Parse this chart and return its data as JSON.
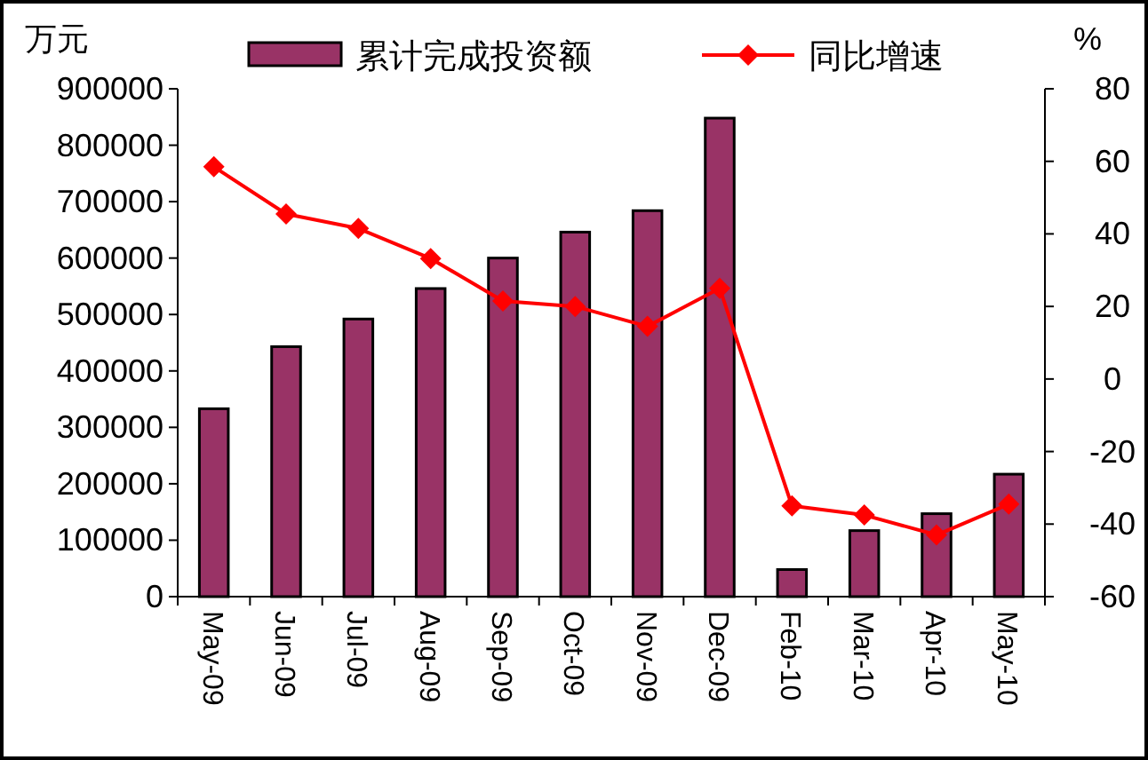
{
  "chart_data": {
    "type": "bar",
    "ylabel": "万元",
    "y2label": "%",
    "categories": [
      "May-09",
      "Jun-09",
      "Jul-09",
      "Aug-09",
      "Sep-09",
      "Oct-09",
      "Nov-09",
      "Dec-09",
      "Feb-10",
      "Mar-10",
      "Apr-10",
      "May-10"
    ],
    "series": [
      {
        "name": "累计完成投资额",
        "color": "#993366",
        "values": [
          333000,
          443000,
          492000,
          546000,
          600000,
          646000,
          684000,
          848000,
          48000,
          117000,
          147000,
          217000
        ]
      },
      {
        "name": "同比增速",
        "type": "line",
        "axis": "y2",
        "color": "#ff0000",
        "values": [
          58.5,
          45.5,
          41.5,
          33.2,
          21.5,
          20,
          14.5,
          25,
          -35,
          -37.5,
          -43,
          -34.5
        ]
      }
    ],
    "ylim": [
      0,
      900000
    ],
    "yticks": [
      0,
      100000,
      200000,
      300000,
      400000,
      500000,
      600000,
      700000,
      800000,
      900000
    ],
    "y2lim": [
      -60,
      80
    ],
    "y2ticks": [
      -60,
      -40,
      -20,
      0,
      20,
      40,
      60,
      80
    ],
    "marker": "diamond",
    "legend": "top"
  }
}
